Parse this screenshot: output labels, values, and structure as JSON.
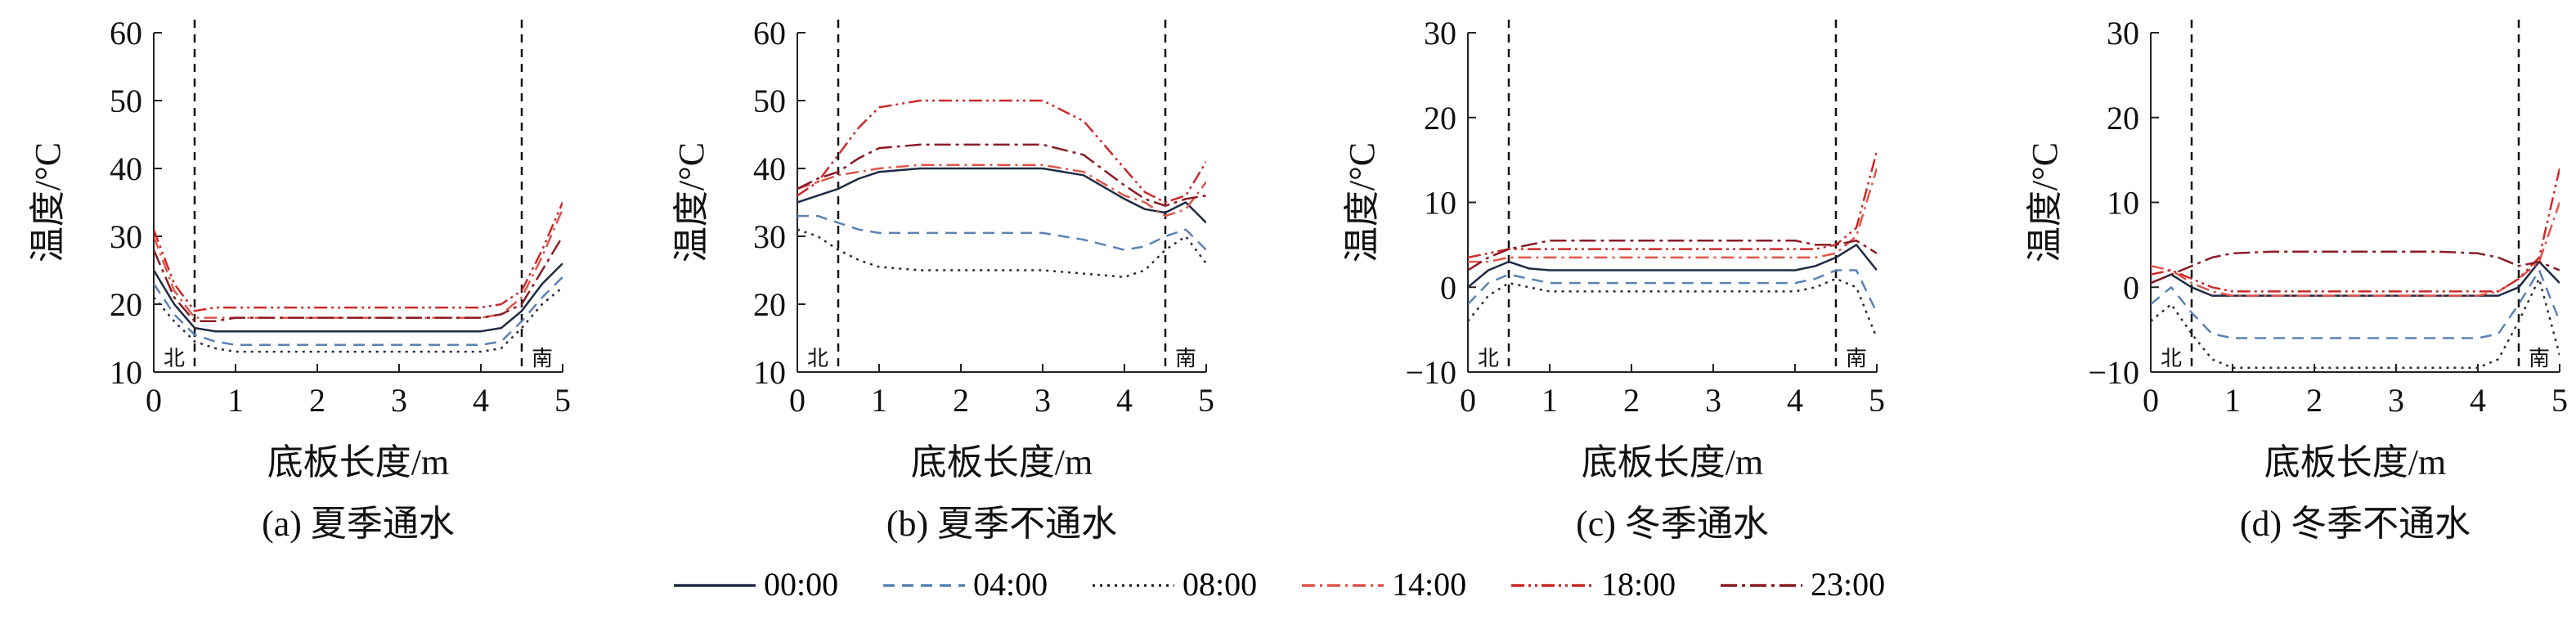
{
  "legend": [
    "00:00",
    "04:00",
    "08:00",
    "14:00",
    "18:00",
    "23:00"
  ],
  "series_styles": [
    {
      "name": "00:00",
      "color": "#1f2a44",
      "dash": "none"
    },
    {
      "name": "04:00",
      "color": "#5b82b5",
      "dash": "14,9"
    },
    {
      "name": "08:00",
      "color": "#2b2b3a",
      "dash": "3,6"
    },
    {
      "name": "14:00",
      "color": "#e0554a",
      "dash": "16,6,3,6"
    },
    {
      "name": "18:00",
      "color": "#cc2a2a",
      "dash": "16,5,3,5,3,5"
    },
    {
      "name": "23:00",
      "color": "#8a1c24",
      "dash": "20,6,4,6"
    }
  ],
  "chart_data": [
    {
      "type": "line",
      "caption": "(a) 夏季通水",
      "xlabel": "底板长度/m",
      "ylabel": "温度/°C",
      "xlim": [
        0,
        5
      ],
      "ylim": [
        10,
        60
      ],
      "xticks": [
        "0",
        "1",
        "2",
        "3",
        "4",
        "5"
      ],
      "yticks": [
        "10",
        "20",
        "30",
        "40",
        "50",
        "60"
      ],
      "vlines": [
        0.5,
        4.5
      ],
      "annotations": [
        {
          "text": "北",
          "x": 0.25
        },
        {
          "text": "南",
          "x": 4.75
        }
      ],
      "x": [
        0,
        0.25,
        0.5,
        0.75,
        1,
        1.5,
        2,
        2.5,
        3,
        3.5,
        4,
        4.25,
        4.5,
        4.75,
        5
      ],
      "series": [
        {
          "name": "00:00",
          "values": [
            25,
            20,
            16.5,
            16,
            16,
            16,
            16,
            16,
            16,
            16,
            16,
            16.5,
            19,
            23,
            26
          ]
        },
        {
          "name": "04:00",
          "values": [
            23,
            18.5,
            15.5,
            14.5,
            14,
            14,
            14,
            14,
            14,
            14,
            14,
            14.5,
            17.5,
            21,
            24
          ]
        },
        {
          "name": "08:00",
          "values": [
            21,
            17.5,
            14.5,
            13.5,
            13,
            13,
            13,
            13,
            13,
            13,
            13,
            13.5,
            16.5,
            20,
            22.5
          ]
        },
        {
          "name": "14:00",
          "values": [
            30,
            22,
            18,
            18,
            18,
            18,
            18,
            18,
            18,
            18,
            18,
            18.5,
            21,
            27,
            34
          ]
        },
        {
          "name": "18:00",
          "values": [
            31,
            23,
            19,
            19.5,
            19.5,
            19.5,
            19.5,
            19.5,
            19.5,
            19.5,
            19.5,
            20,
            22,
            28,
            35
          ]
        },
        {
          "name": "23:00",
          "values": [
            28,
            21,
            17.5,
            17.5,
            18,
            18,
            18,
            18,
            18,
            18,
            18,
            18.5,
            20,
            25,
            30
          ]
        }
      ]
    },
    {
      "type": "line",
      "caption": "(b) 夏季不通水",
      "xlabel": "底板长度/m",
      "ylabel": "温度/°C",
      "xlim": [
        0,
        5
      ],
      "ylim": [
        10,
        60
      ],
      "xticks": [
        "0",
        "1",
        "2",
        "3",
        "4",
        "5"
      ],
      "yticks": [
        "10",
        "20",
        "30",
        "40",
        "50",
        "60"
      ],
      "vlines": [
        0.5,
        4.5
      ],
      "annotations": [
        {
          "text": "北",
          "x": 0.25
        },
        {
          "text": "南",
          "x": 4.75
        }
      ],
      "x": [
        0,
        0.25,
        0.5,
        0.75,
        1,
        1.5,
        2,
        2.5,
        3,
        3.5,
        4,
        4.25,
        4.5,
        4.75,
        5
      ],
      "series": [
        {
          "name": "00:00",
          "values": [
            35,
            36,
            37,
            38.5,
            39.5,
            40,
            40,
            40,
            40,
            39,
            35.5,
            34,
            33.5,
            35,
            32
          ]
        },
        {
          "name": "04:00",
          "values": [
            33,
            33,
            32,
            31,
            30.5,
            30.5,
            30.5,
            30.5,
            30.5,
            29.5,
            28,
            28.5,
            30,
            31,
            28
          ]
        },
        {
          "name": "08:00",
          "values": [
            31,
            30,
            28,
            26.5,
            25.5,
            25,
            25,
            25,
            25,
            24.5,
            24,
            25,
            28,
            30,
            26
          ]
        },
        {
          "name": "14:00",
          "values": [
            37,
            38,
            39,
            39.5,
            40,
            40.5,
            40.5,
            40.5,
            40.5,
            39.5,
            36,
            35,
            33,
            34,
            38
          ]
        },
        {
          "name": "18:00",
          "values": [
            36,
            38,
            42,
            46,
            49,
            50,
            50,
            50,
            50,
            47,
            40,
            36.5,
            35,
            36,
            41
          ]
        },
        {
          "name": "23:00",
          "values": [
            37,
            38.5,
            39.5,
            41.5,
            43,
            43.5,
            43.5,
            43.5,
            43.5,
            42,
            37.5,
            35.5,
            34.5,
            35.5,
            36
          ]
        }
      ]
    },
    {
      "type": "line",
      "caption": "(c) 冬季通水",
      "xlabel": "底板长度/m",
      "ylabel": "温度/°C",
      "xlim": [
        0,
        5
      ],
      "ylim": [
        -10,
        30
      ],
      "xticks": [
        "0",
        "1",
        "2",
        "3",
        "4",
        "5"
      ],
      "yticks": [
        "−10",
        "0",
        "10",
        "20",
        "30"
      ],
      "vlines": [
        0.5,
        4.5
      ],
      "annotations": [
        {
          "text": "北",
          "x": 0.25
        },
        {
          "text": "南",
          "x": 4.75
        }
      ],
      "x": [
        0,
        0.25,
        0.5,
        0.75,
        1,
        1.5,
        2,
        2.5,
        3,
        3.5,
        4,
        4.25,
        4.5,
        4.75,
        5
      ],
      "series": [
        {
          "name": "00:00",
          "values": [
            0,
            2,
            3,
            2.2,
            2,
            2,
            2,
            2,
            2,
            2,
            2,
            2.5,
            3.5,
            5,
            2
          ]
        },
        {
          "name": "04:00",
          "values": [
            -2,
            0.5,
            1.5,
            1,
            0.5,
            0.5,
            0.5,
            0.5,
            0.5,
            0.5,
            0.5,
            1,
            2,
            2,
            -3
          ]
        },
        {
          "name": "08:00",
          "values": [
            -4,
            -1,
            0.5,
            0,
            -0.5,
            -0.5,
            -0.5,
            -0.5,
            -0.5,
            -0.5,
            -0.5,
            0,
            1,
            0,
            -6
          ]
        },
        {
          "name": "14:00",
          "values": [
            3,
            3,
            3.5,
            3.5,
            3.5,
            3.5,
            3.5,
            3.5,
            3.5,
            3.5,
            3.5,
            3.5,
            4,
            6,
            14
          ]
        },
        {
          "name": "18:00",
          "values": [
            3.5,
            4,
            4.5,
            4.5,
            4.5,
            4.5,
            4.5,
            4.5,
            4.5,
            4.5,
            4.5,
            4.5,
            5,
            7,
            16
          ]
        },
        {
          "name": "23:00",
          "values": [
            2,
            3.5,
            4.5,
            5,
            5.5,
            5.5,
            5.5,
            5.5,
            5.5,
            5.5,
            5.5,
            5,
            5,
            5.5,
            4
          ]
        }
      ]
    },
    {
      "type": "line",
      "caption": "(d) 冬季不通水",
      "xlabel": "底板长度/m",
      "ylabel": "温度/°C",
      "xlim": [
        0,
        5
      ],
      "ylim": [
        -10,
        30
      ],
      "xticks": [
        "0",
        "1",
        "2",
        "3",
        "4",
        "5"
      ],
      "yticks": [
        "−10",
        "0",
        "10",
        "20",
        "30"
      ],
      "vlines": [
        0.5,
        4.5
      ],
      "annotations": [
        {
          "text": "北",
          "x": 0.25
        },
        {
          "text": "南",
          "x": 4.75
        }
      ],
      "x": [
        0,
        0.25,
        0.5,
        0.75,
        1,
        1.5,
        2,
        2.5,
        3,
        3.5,
        4,
        4.25,
        4.5,
        4.75,
        5
      ],
      "series": [
        {
          "name": "00:00",
          "values": [
            0.5,
            1.5,
            0,
            -1,
            -1,
            -1,
            -1,
            -1,
            -1,
            -1,
            -1,
            -1,
            0,
            3,
            0.5
          ]
        },
        {
          "name": "04:00",
          "values": [
            -2,
            0,
            -3,
            -5.5,
            -6,
            -6,
            -6,
            -6,
            -6,
            -6,
            -6,
            -5.5,
            -2,
            2,
            -4
          ]
        },
        {
          "name": "08:00",
          "values": [
            -4,
            -2,
            -5.5,
            -8.5,
            -9.5,
            -9.5,
            -9.5,
            -9.5,
            -9.5,
            -9.5,
            -9.5,
            -8.5,
            -4,
            1,
            -8
          ]
        },
        {
          "name": "14:00",
          "values": [
            2.5,
            2,
            0.5,
            -0.5,
            -1,
            -1,
            -1,
            -1,
            -1,
            -1,
            -1,
            -0.5,
            1,
            3,
            10
          ]
        },
        {
          "name": "18:00",
          "values": [
            1.5,
            2,
            1,
            0,
            -0.5,
            -0.5,
            -0.5,
            -0.5,
            -0.5,
            -0.5,
            -0.5,
            -0.5,
            1,
            3.5,
            14
          ]
        },
        {
          "name": "23:00",
          "values": [
            0.5,
            1.5,
            2.5,
            3.5,
            4,
            4.2,
            4.2,
            4.2,
            4.2,
            4.2,
            4,
            3.5,
            2.5,
            3,
            2
          ]
        }
      ]
    }
  ]
}
